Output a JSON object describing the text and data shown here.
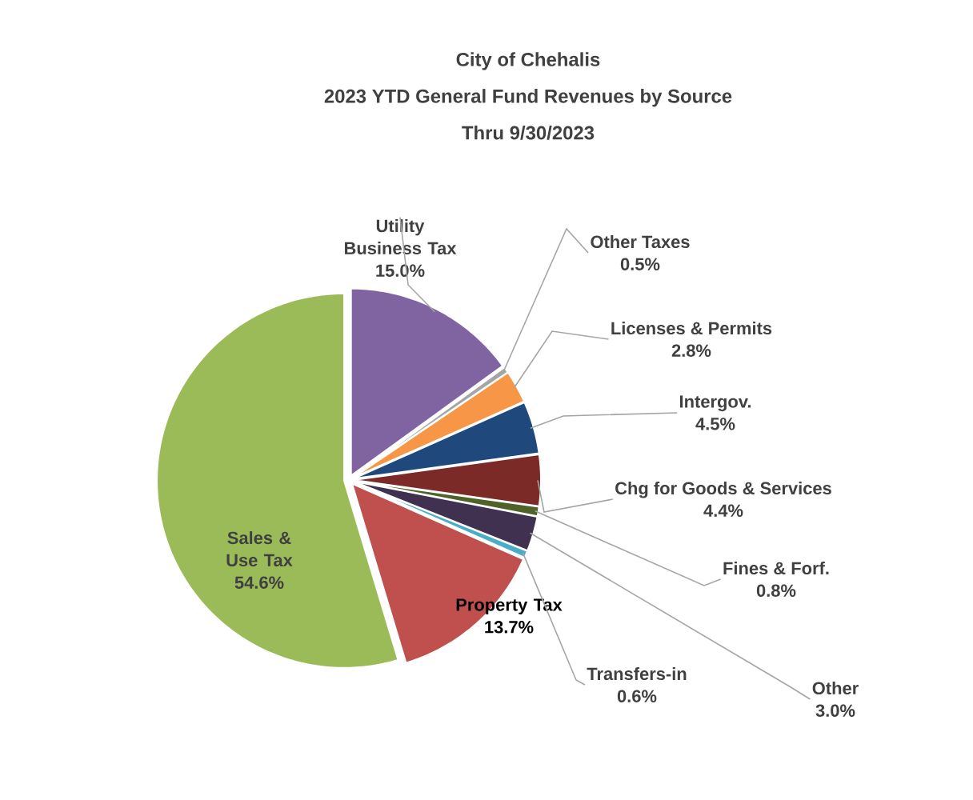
{
  "chart_data": {
    "type": "pie",
    "title": "City of Chehalis",
    "subtitle": "2023 YTD General Fund Revenues by Source",
    "annotations": [
      "Thru 9/30/2023"
    ],
    "categories": [
      "Utility Business Tax",
      "Other Taxes",
      "Licenses & Permits",
      "Intergov.",
      "Chg for Goods & Services",
      "Fines & Forf.",
      "Other",
      "Transfers-in",
      "Property Tax",
      "Sales & Use Tax"
    ],
    "values": [
      15.0,
      0.5,
      2.8,
      4.5,
      4.4,
      0.8,
      3.0,
      0.6,
      13.7,
      54.6
    ],
    "value_labels": [
      "15.0%",
      "0.5%",
      "2.8%",
      "4.5%",
      "4.4%",
      "0.8%",
      "3.0%",
      "0.6%",
      "13.7%",
      "54.6%"
    ],
    "colors": [
      "#8064a2",
      "#a5a5a5",
      "#f79646",
      "#1f497d",
      "#7b2a28",
      "#4f6228",
      "#403151",
      "#4bacc6",
      "#c0504d",
      "#9bbb59"
    ]
  }
}
